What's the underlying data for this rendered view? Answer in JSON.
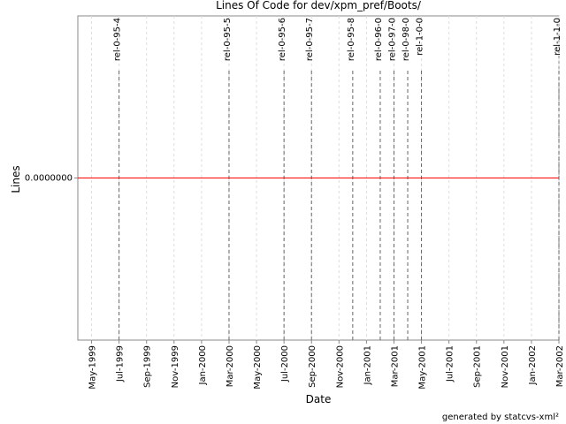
{
  "chart_data": {
    "type": "line",
    "title": "Lines Of Code for dev/xpm_pref/Boots/",
    "x_label": "Date",
    "y_label": "Lines",
    "footer": "generated by statcvs-xml²",
    "x": [
      "1999-04",
      "2002-03"
    ],
    "values": [
      0,
      0
    ],
    "color": "#ff0000",
    "xlim": [
      "1999-04",
      "2002-03"
    ],
    "xticks": [
      {
        "value": "1999-05",
        "label": "May-1999"
      },
      {
        "value": "1999-07",
        "label": "Jul-1999"
      },
      {
        "value": "1999-09",
        "label": "Sep-1999"
      },
      {
        "value": "1999-11",
        "label": "Nov-1999"
      },
      {
        "value": "2000-01",
        "label": "Jan-2000"
      },
      {
        "value": "2000-03",
        "label": "Mar-2000"
      },
      {
        "value": "2000-05",
        "label": "May-2000"
      },
      {
        "value": "2000-07",
        "label": "Jul-2000"
      },
      {
        "value": "2000-09",
        "label": "Sep-2000"
      },
      {
        "value": "2000-11",
        "label": "Nov-2000"
      },
      {
        "value": "2001-01",
        "label": "Jan-2001"
      },
      {
        "value": "2001-03",
        "label": "Mar-2001"
      },
      {
        "value": "2001-05",
        "label": "May-2001"
      },
      {
        "value": "2001-07",
        "label": "Jul-2001"
      },
      {
        "value": "2001-09",
        "label": "Sep-2001"
      },
      {
        "value": "2001-11",
        "label": "Nov-2001"
      },
      {
        "value": "2002-01",
        "label": "Jan-2002"
      },
      {
        "value": "2002-03",
        "label": "Mar-2002"
      }
    ],
    "ylim": [
      -1,
      1
    ],
    "yticks": [
      {
        "value": 0,
        "label": "0.0000000"
      }
    ],
    "grid": true,
    "releases": [
      {
        "label": "rel-0-95-4",
        "x": "1999-07"
      },
      {
        "label": "rel-0-95-5",
        "x": "2000-03"
      },
      {
        "label": "rel-0-95-6",
        "x": "2000-07"
      },
      {
        "label": "rel-0-95-7",
        "x": "2000-09"
      },
      {
        "label": "rel-0-95-8",
        "x": "2000-12"
      },
      {
        "label": "rel-0-96-0",
        "x": "2001-02"
      },
      {
        "label": "rel-0-97-0",
        "x": "2001-03"
      },
      {
        "label": "rel-0-98-0",
        "x": "2001-04"
      },
      {
        "label": "rel-1-0-0",
        "x": "2001-05"
      },
      {
        "label": "rel-1-1-0",
        "x": "2002-03"
      }
    ]
  }
}
